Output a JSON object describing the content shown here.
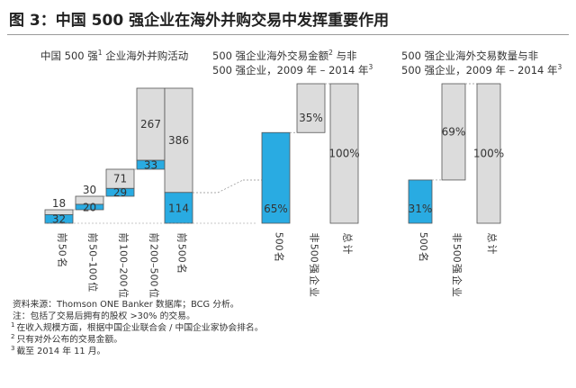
{
  "figure": {
    "title": "图 3：中国 500 强企业在海外并购交易中发挥重要作用",
    "footnotes": [
      {
        "mark": "",
        "text": "资料来源：Thomson ONE Banker 数据库；BCG 分析。"
      },
      {
        "mark": "",
        "text": "注：包括了交易后拥有的股权 >30% 的交易。"
      },
      {
        "mark": "1",
        "text": "在收入规模方面，根据中国企业联合会 / 中国企业家协会排名。"
      },
      {
        "mark": "2",
        "text": "只有对外公布的交易金额。"
      },
      {
        "mark": "3",
        "text": "截至 2014 年 11 月。"
      }
    ]
  },
  "colors": {
    "blue": "#29abe2",
    "gray": "#dcdcdc",
    "outline": "#555555",
    "connector": "#8f8f8f",
    "rule": "#9a9a9a"
  },
  "chart_data": [
    {
      "type": "bar",
      "subtype": "stacked-waterfall",
      "title": {
        "pre": "中国 500 强",
        "sup": "1",
        "post": " 企业海外并购活动"
      },
      "categories": [
        "前 50 名",
        "前 50–100 位",
        "前 100–200 位",
        "前 200–500 位",
        "前 500 名"
      ],
      "series": [
        {
          "values": [
            32,
            20,
            29,
            33,
            114
          ],
          "color": "blue"
        },
        {
          "values": [
            18,
            30,
            71,
            267,
            386
          ],
          "color": "gray"
        }
      ],
      "note": "first four bars stack cumulatively; final bar is the total"
    },
    {
      "type": "bar",
      "subtype": "100%-waterfall",
      "title": {
        "line1": "500 强企业海外交易金额",
        "sup1": "2",
        "line1_post": " 与非",
        "line2": "500 强企业，2009 年 – 2014 年",
        "sup2": "3"
      },
      "categories": [
        "500 名",
        "非 500 强企业",
        "总计"
      ],
      "values": [
        65,
        35,
        100
      ],
      "labels": [
        "65%",
        "35%",
        "100%"
      ],
      "colors": [
        "blue",
        "gray",
        "gray"
      ],
      "unit": "%",
      "ylim": [
        0,
        100
      ]
    },
    {
      "type": "bar",
      "subtype": "100%-waterfall",
      "title": {
        "line1": "500 强企业海外交易数量与非",
        "line2": "500 强企业，2009 年 – 2014 年",
        "sup2": "3"
      },
      "categories": [
        "500 名",
        "非 500 强企业",
        "总计"
      ],
      "values": [
        31,
        69,
        100
      ],
      "labels": [
        "31%",
        "69%",
        "100%"
      ],
      "colors": [
        "blue",
        "gray",
        "gray"
      ],
      "unit": "%",
      "ylim": [
        0,
        100
      ]
    }
  ]
}
